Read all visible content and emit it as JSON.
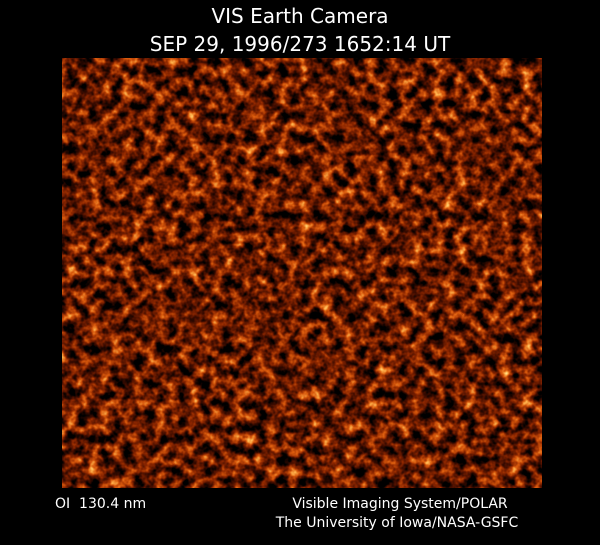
{
  "header": {
    "title": "VIS Earth Camera",
    "subtitle": "SEP 29, 1996/273 1652:14 UT"
  },
  "footer": {
    "wavelength": "OI  130.4 nm",
    "instrument": "Visible Imaging System/POLAR",
    "institution": "The University of Iowa/NASA-GSFC"
  }
}
